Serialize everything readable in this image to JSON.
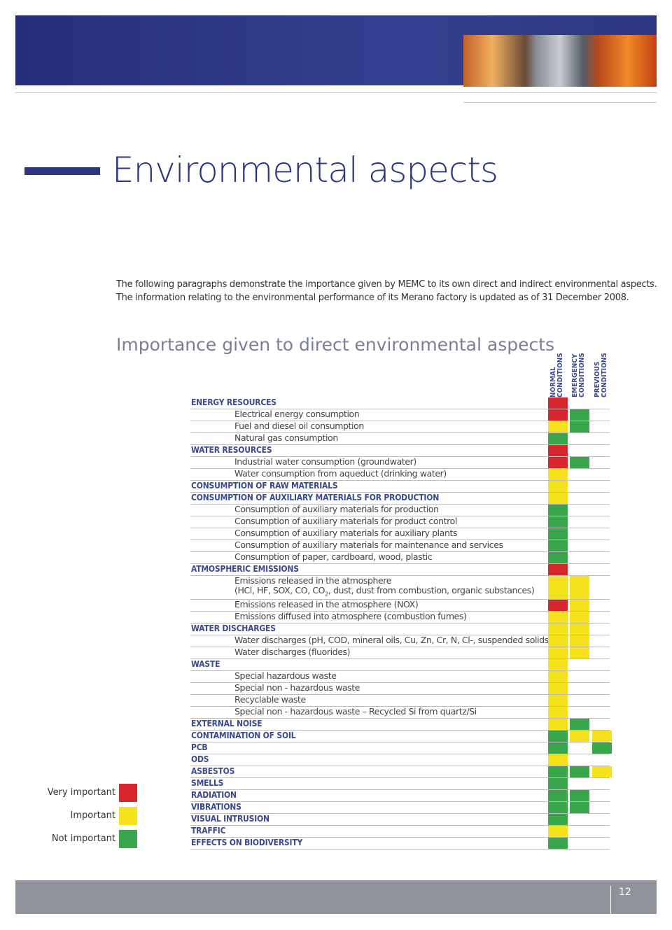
{
  "header": {
    "title": "Environmental aspects",
    "intro": [
      "The following paragraphs demonstrate the importance given by MEMC to its own direct and indirect environmental aspects.",
      "The information relating to the environmental performance of its Merano factory is updated as of 31 December 2008."
    ]
  },
  "table": {
    "title": "Importance given to direct environmental aspects",
    "columns": [
      [
        "NORMAL",
        "CONDITIONS"
      ],
      [
        "EMERGENCY",
        "CONDITIONS"
      ],
      [
        "PREVIOUS",
        "CONDITIONS"
      ]
    ],
    "legend": [
      {
        "label": "Very important",
        "color": "#d7282f"
      },
      {
        "label": "Important",
        "color": "#f5e11c"
      },
      {
        "label": "Not important",
        "color": "#3aa64b"
      }
    ],
    "rows": [
      {
        "label": "ENERGY RESOURCES",
        "kind": "category",
        "cells": [
          0,
          null,
          null
        ]
      },
      {
        "label": "Electrical energy consumption",
        "kind": "item",
        "cells": [
          0,
          2,
          null
        ]
      },
      {
        "label": "Fuel and diesel oil consumption",
        "kind": "item",
        "cells": [
          1,
          2,
          null
        ]
      },
      {
        "label": "Natural gas consumption",
        "kind": "item",
        "cells": [
          2,
          null,
          null
        ]
      },
      {
        "label": "WATER RESOURCES",
        "kind": "category",
        "cells": [
          0,
          null,
          null
        ]
      },
      {
        "label": "Industrial water consumption (groundwater)",
        "kind": "item",
        "cells": [
          0,
          2,
          null
        ]
      },
      {
        "label": "Water consumption from aqueduct (drinking water)",
        "kind": "item",
        "cells": [
          1,
          null,
          null
        ]
      },
      {
        "label": "CONSUMPTION OF RAW MATERIALS",
        "kind": "category",
        "cells": [
          1,
          null,
          null
        ]
      },
      {
        "label": "CONSUMPTION OF AUXILIARY MATERIALS FOR PRODUCTION",
        "kind": "category",
        "cells": [
          1,
          null,
          null
        ]
      },
      {
        "label": "Consumption of auxiliary materials for production",
        "kind": "item",
        "cells": [
          2,
          null,
          null
        ]
      },
      {
        "label": "Consumption of auxiliary materials for product control",
        "kind": "item",
        "cells": [
          2,
          null,
          null
        ]
      },
      {
        "label": "Consumption of auxiliary materials for auxiliary plants",
        "kind": "item",
        "cells": [
          2,
          null,
          null
        ]
      },
      {
        "label": "Consumption of auxiliary materials for maintenance and services",
        "kind": "item",
        "cells": [
          2,
          null,
          null
        ]
      },
      {
        "label": "Consumption of paper, cardboard, wood, plastic",
        "kind": "item",
        "cells": [
          2,
          null,
          null
        ]
      },
      {
        "label": "ATMOSPHERIC EMISSIONS",
        "kind": "category",
        "cells": [
          0,
          null,
          null
        ]
      },
      {
        "label": "Emissions released in the atmosphere",
        "label_line2": [
          "(HCl, HF, SOX, CO, CO",
          "2",
          ", dust, dust from combustion, organic substances)"
        ],
        "kind": "item",
        "cells": [
          1,
          1,
          null
        ]
      },
      {
        "label": "Emissions released in the atmosphere (NOX)",
        "kind": "item",
        "cells": [
          0,
          1,
          null
        ]
      },
      {
        "label": "Emissions diffused into atmosphere (combustion fumes)",
        "kind": "item",
        "cells": [
          1,
          1,
          null
        ]
      },
      {
        "label": "WATER DISCHARGES",
        "kind": "category",
        "cells": [
          1,
          1,
          null
        ]
      },
      {
        "label": "Water discharges  (pH, COD, mineral oils, Cu, Zn, Cr, N, Cl-, suspended solids)",
        "kind": "item",
        "cells": [
          1,
          1,
          null
        ]
      },
      {
        "label": "Water discharges (fluorides)",
        "kind": "item",
        "cells": [
          1,
          1,
          null
        ]
      },
      {
        "label": "WASTE",
        "kind": "category",
        "cells": [
          1,
          null,
          null
        ]
      },
      {
        "label": "Special hazardous waste",
        "kind": "item",
        "cells": [
          1,
          null,
          null
        ]
      },
      {
        "label": "Special non - hazardous waste",
        "kind": "item",
        "cells": [
          1,
          null,
          null
        ]
      },
      {
        "label": "Recyclable waste",
        "kind": "item",
        "cells": [
          1,
          null,
          null
        ]
      },
      {
        "label": "Special non - hazardous waste – Recycled Si from quartz/Si",
        "kind": "item",
        "cells": [
          1,
          null,
          null
        ]
      },
      {
        "label": "EXTERNAL NOISE",
        "kind": "category",
        "cells": [
          1,
          2,
          null
        ]
      },
      {
        "label": "CONTAMINATION OF SOIL",
        "kind": "category",
        "cells": [
          2,
          1,
          1
        ]
      },
      {
        "label": "PCB",
        "kind": "category",
        "cells": [
          2,
          null,
          2
        ]
      },
      {
        "label": "ODS",
        "kind": "category",
        "cells": [
          1,
          null,
          null
        ]
      },
      {
        "label": "ASBESTOS",
        "kind": "category",
        "cells": [
          2,
          2,
          1
        ]
      },
      {
        "label": "SMELLS",
        "kind": "category",
        "cells": [
          2,
          null,
          null
        ]
      },
      {
        "label": "RADIATION",
        "kind": "category",
        "cells": [
          2,
          2,
          null
        ]
      },
      {
        "label": "VIBRATIONS",
        "kind": "category",
        "cells": [
          2,
          2,
          null
        ]
      },
      {
        "label": "VISUAL INTRUSION",
        "kind": "category",
        "cells": [
          2,
          null,
          null
        ]
      },
      {
        "label": "TRAFFIC",
        "kind": "category",
        "cells": [
          1,
          null,
          null
        ]
      },
      {
        "label": "EFFECTS ON BIODIVERSITY",
        "kind": "category",
        "cells": [
          2,
          null,
          null
        ]
      }
    ]
  },
  "footer": {
    "page": "12"
  }
}
